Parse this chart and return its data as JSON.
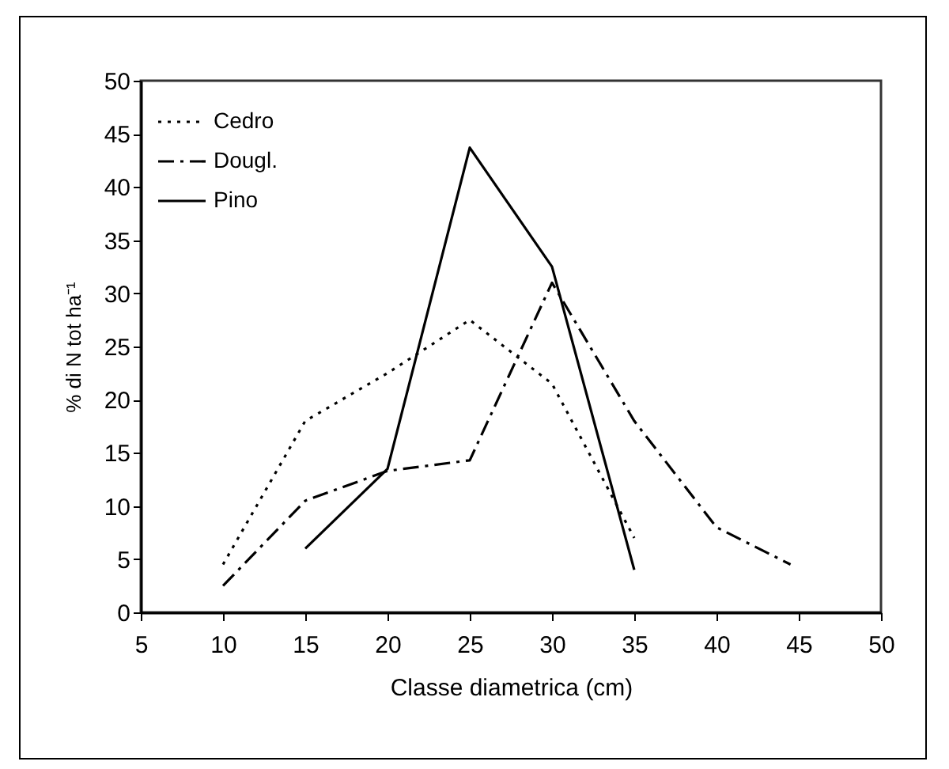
{
  "chart_data": {
    "type": "line",
    "xlabel": "Classe diametrica (cm)",
    "ylabel": "% di N tot ha⁻¹",
    "xlim": [
      5,
      50
    ],
    "xticks": [
      5,
      10,
      15,
      20,
      25,
      30,
      35,
      40,
      45,
      50
    ],
    "ylim": [
      0,
      50
    ],
    "yticks": [
      0,
      5,
      10,
      15,
      20,
      25,
      30,
      35,
      40,
      45,
      50
    ],
    "grid": false,
    "legend": "top left",
    "marker": "none",
    "series": [
      {
        "name": "Cedro",
        "color": "#000000",
        "line_style": "dotted",
        "x": [
          10,
          15,
          20,
          25,
          30,
          35
        ],
        "values": [
          4.5,
          18,
          22.5,
          27.5,
          21.5,
          7
        ]
      },
      {
        "name": "Dougl.",
        "color": "#000000",
        "line_style": "dashdot",
        "x": [
          10,
          15,
          20,
          25,
          30,
          35,
          40,
          44.5
        ],
        "values": [
          2.5,
          10.5,
          13.3,
          14.3,
          31,
          18,
          8,
          4.5
        ]
      },
      {
        "name": "Pino",
        "color": "#000000",
        "line_style": "solid",
        "x": [
          15,
          20,
          25,
          30,
          35
        ],
        "values": [
          6,
          13.5,
          43.7,
          32.5,
          4
        ]
      }
    ]
  }
}
